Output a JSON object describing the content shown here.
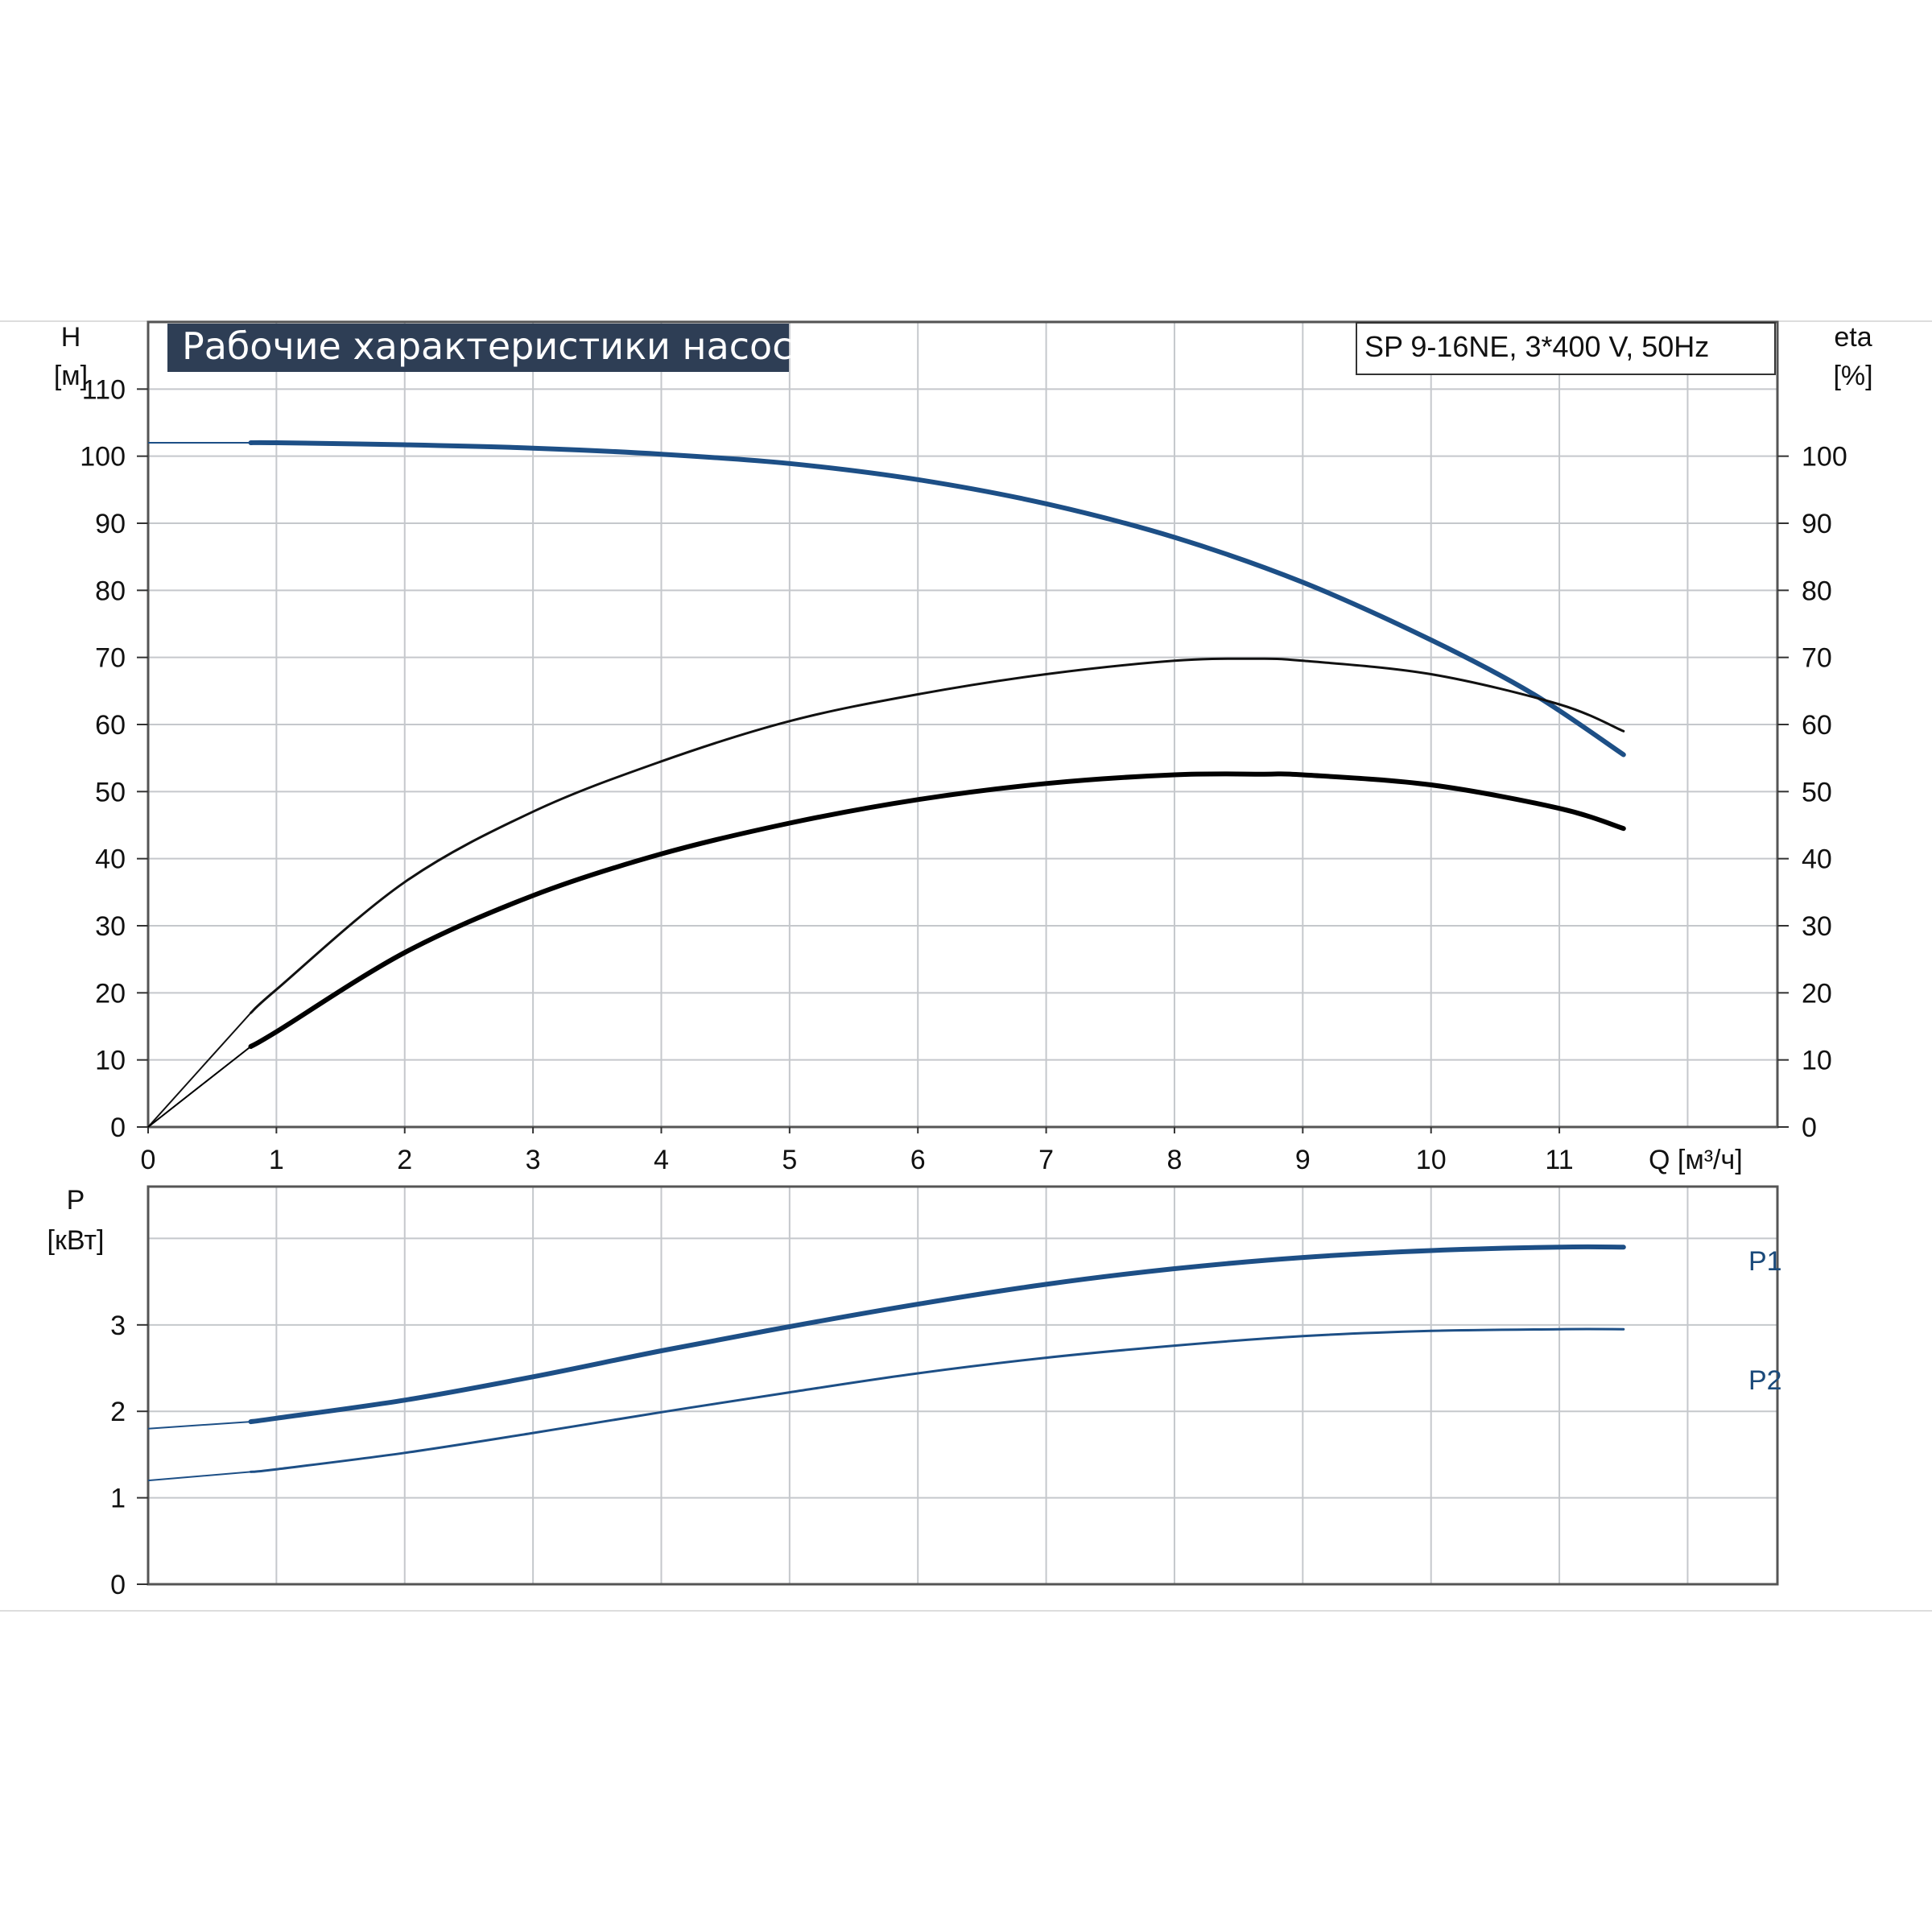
{
  "chart_data": [
    {
      "type": "line",
      "title": "Рабочие характеристики насоса",
      "model_label": "SP 9-16NE, 3*400 V, 50Hz",
      "ylabel_left": "H",
      "ylabel_left_unit": "[м]",
      "ylabel_right": "eta",
      "ylabel_right_unit": "[%]",
      "xlabel": "Q [м³/ч]",
      "xlim": [
        0,
        12.7
      ],
      "ylim": [
        0,
        120
      ],
      "x_ticks": [
        "0",
        "1",
        "2",
        "3",
        "4",
        "5",
        "6",
        "7",
        "8",
        "9",
        "10",
        "11"
      ],
      "y_ticks_left": [
        "0",
        "10",
        "20",
        "30",
        "40",
        "50",
        "60",
        "70",
        "80",
        "90",
        "100",
        "110"
      ],
      "y_ticks_right": [
        "0",
        "10",
        "20",
        "30",
        "40",
        "50",
        "60",
        "70",
        "80",
        "90",
        "100"
      ],
      "grid": true,
      "colors": {
        "head": "#1d4f86",
        "eta_pump": "#111111",
        "eta_total": "#000000",
        "grid": "#c5c8cc",
        "title_bg": "#2e3e55"
      },
      "series": [
        {
          "x": [
            0,
            0.8,
            1,
            2,
            3,
            4,
            5,
            6,
            7,
            8,
            9,
            10,
            10.8,
            11.5
          ],
          "values": [
            102,
            102,
            102,
            101.7,
            101.2,
            100.3,
            98.9,
            96.5,
            92.9,
            87.9,
            81.2,
            72.6,
            64.5,
            55.5
          ],
          "line": "thick",
          "color": "#1d4f86"
        },
        {
          "x": [
            0,
            0.8,
            1,
            2,
            3,
            4,
            5,
            6,
            7,
            8,
            8.6,
            9,
            10,
            11,
            11.5
          ],
          "values": [
            0,
            17,
            20.5,
            36.5,
            47,
            54.5,
            60.5,
            64.5,
            67.5,
            69.5,
            69.8,
            69.5,
            67.5,
            63,
            59
          ],
          "line": "thin",
          "color": "#111111"
        },
        {
          "x": [
            0,
            0.8,
            1,
            2,
            3,
            4,
            5,
            6,
            7,
            8,
            8.7,
            9,
            10,
            11,
            11.5
          ],
          "values": [
            0,
            12,
            14.2,
            26,
            34.5,
            40.7,
            45.3,
            48.8,
            51.2,
            52.5,
            52.6,
            52.5,
            51,
            47.5,
            44.5
          ],
          "line": "thick",
          "color": "#000000"
        }
      ]
    },
    {
      "type": "line",
      "ylabel": "P",
      "ylabel_unit": "[кВт]",
      "xlim": [
        0,
        12.7
      ],
      "ylim": [
        0,
        4.6
      ],
      "y_ticks": [
        "0",
        "1",
        "2",
        "3"
      ],
      "grid": true,
      "series": [
        {
          "name": "P1",
          "x": [
            0,
            0.8,
            1,
            2,
            3,
            4,
            5,
            6,
            7,
            8,
            9,
            10,
            11,
            11.5
          ],
          "values": [
            1.8,
            1.88,
            1.92,
            2.13,
            2.4,
            2.7,
            2.98,
            3.24,
            3.47,
            3.65,
            3.78,
            3.86,
            3.9,
            3.9
          ],
          "color": "#1d4f86",
          "line": "thick"
        },
        {
          "name": "P2",
          "x": [
            0,
            0.8,
            1,
            2,
            3,
            4,
            5,
            6,
            7,
            8,
            9,
            10,
            11,
            11.5
          ],
          "values": [
            1.2,
            1.3,
            1.33,
            1.52,
            1.75,
            1.99,
            2.22,
            2.44,
            2.62,
            2.76,
            2.87,
            2.93,
            2.95,
            2.95
          ],
          "color": "#1d4f86",
          "line": "thin"
        }
      ]
    }
  ]
}
